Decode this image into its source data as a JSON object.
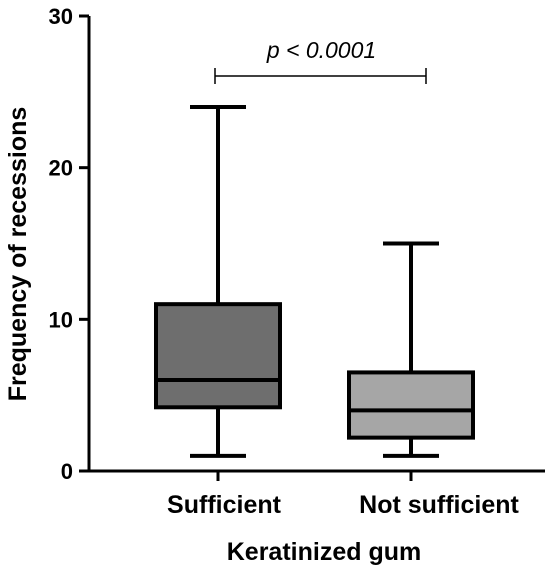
{
  "chart_data": {
    "type": "box",
    "xlabel": "Keratinized gum",
    "ylabel": "Frequency of recessions",
    "ylim": [
      0,
      30
    ],
    "yticks": [
      0,
      10,
      20,
      30
    ],
    "categories": [
      "Sufficient",
      "Not sufficient"
    ],
    "series": [
      {
        "category": "Sufficient",
        "min": 1,
        "q1": 4.2,
        "median": 6,
        "q3": 11,
        "max": 24,
        "color": "#6e6e6e"
      },
      {
        "category": "Not sufficient",
        "min": 1,
        "q1": 2.2,
        "median": 4,
        "q3": 6.5,
        "max": 15,
        "color": "#a6a6a6"
      }
    ],
    "annotations": [
      {
        "text": "p < 0.0001",
        "between": [
          "Sufficient",
          "Not sufficient"
        ]
      }
    ]
  }
}
